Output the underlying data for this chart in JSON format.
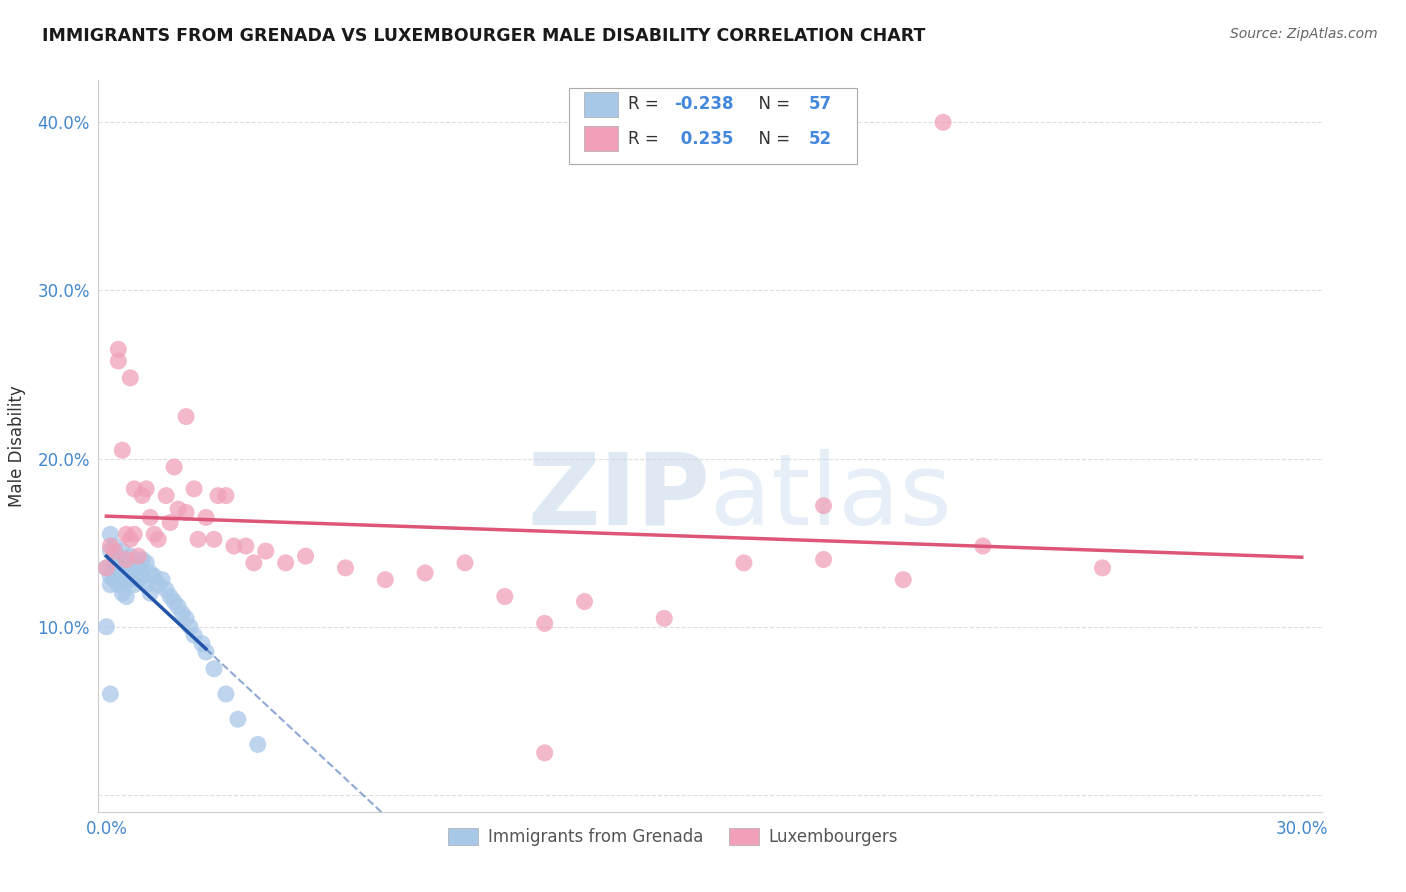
{
  "title": "IMMIGRANTS FROM GRENADA VS LUXEMBOURGER MALE DISABILITY CORRELATION CHART",
  "source": "Source: ZipAtlas.com",
  "ylabel": "Male Disability",
  "xlim": [
    -0.002,
    0.305
  ],
  "ylim": [
    -0.01,
    0.425
  ],
  "xticks": [
    0.0,
    0.05,
    0.1,
    0.15,
    0.2,
    0.25,
    0.3
  ],
  "yticks": [
    0.0,
    0.1,
    0.2,
    0.3,
    0.4
  ],
  "ytick_labels": [
    "",
    "10.0%",
    "20.0%",
    "30.0%",
    "40.0%"
  ],
  "xtick_labels": [
    "0.0%",
    "",
    "",
    "",
    "",
    "",
    "30.0%"
  ],
  "series1_color": "#a8c8e8",
  "series2_color": "#f0a0b8",
  "series1_line_color": "#2255aa",
  "series2_line_color": "#dd5577",
  "series1_label": "Immigrants from Grenada",
  "series2_label": "Luxembourgers",
  "series1_R": -0.238,
  "series1_N": 57,
  "series2_R": 0.235,
  "series2_N": 52,
  "s1x": [
    0.0,
    0.001,
    0.001,
    0.001,
    0.001,
    0.002,
    0.002,
    0.002,
    0.002,
    0.002,
    0.003,
    0.003,
    0.003,
    0.003,
    0.003,
    0.004,
    0.004,
    0.004,
    0.004,
    0.004,
    0.005,
    0.005,
    0.005,
    0.005,
    0.006,
    0.006,
    0.006,
    0.007,
    0.007,
    0.007,
    0.008,
    0.008,
    0.009,
    0.009,
    0.01,
    0.01,
    0.011,
    0.011,
    0.012,
    0.013,
    0.014,
    0.015,
    0.016,
    0.017,
    0.018,
    0.019,
    0.02,
    0.021,
    0.022,
    0.024,
    0.025,
    0.027,
    0.03,
    0.033,
    0.038,
    0.0,
    0.001
  ],
  "s1y": [
    0.135,
    0.145,
    0.13,
    0.125,
    0.155,
    0.14,
    0.133,
    0.128,
    0.148,
    0.137,
    0.142,
    0.136,
    0.13,
    0.125,
    0.14,
    0.145,
    0.138,
    0.132,
    0.127,
    0.12,
    0.138,
    0.133,
    0.127,
    0.118,
    0.142,
    0.136,
    0.128,
    0.138,
    0.133,
    0.125,
    0.136,
    0.128,
    0.14,
    0.13,
    0.138,
    0.125,
    0.132,
    0.12,
    0.13,
    0.125,
    0.128,
    0.122,
    0.118,
    0.115,
    0.112,
    0.108,
    0.105,
    0.1,
    0.095,
    0.09,
    0.085,
    0.075,
    0.06,
    0.045,
    0.03,
    0.1,
    0.06
  ],
  "s2x": [
    0.0,
    0.001,
    0.002,
    0.003,
    0.003,
    0.004,
    0.005,
    0.005,
    0.006,
    0.006,
    0.007,
    0.007,
    0.008,
    0.009,
    0.01,
    0.011,
    0.012,
    0.013,
    0.015,
    0.016,
    0.017,
    0.018,
    0.02,
    0.022,
    0.023,
    0.025,
    0.027,
    0.028,
    0.03,
    0.032,
    0.035,
    0.037,
    0.04,
    0.045,
    0.05,
    0.06,
    0.07,
    0.08,
    0.09,
    0.1,
    0.11,
    0.12,
    0.14,
    0.16,
    0.18,
    0.2,
    0.22,
    0.25,
    0.18,
    0.02,
    0.11,
    0.21
  ],
  "s2y": [
    0.135,
    0.148,
    0.145,
    0.258,
    0.265,
    0.205,
    0.14,
    0.155,
    0.248,
    0.152,
    0.155,
    0.182,
    0.142,
    0.178,
    0.182,
    0.165,
    0.155,
    0.152,
    0.178,
    0.162,
    0.195,
    0.17,
    0.168,
    0.182,
    0.152,
    0.165,
    0.152,
    0.178,
    0.178,
    0.148,
    0.148,
    0.138,
    0.145,
    0.138,
    0.142,
    0.135,
    0.128,
    0.132,
    0.138,
    0.118,
    0.102,
    0.115,
    0.105,
    0.138,
    0.14,
    0.128,
    0.148,
    0.135,
    0.172,
    0.225,
    0.025,
    0.4
  ],
  "watermark_zip": "ZIP",
  "watermark_atlas": "atlas",
  "background_color": "#ffffff",
  "grid_color": "#d8d8d8"
}
